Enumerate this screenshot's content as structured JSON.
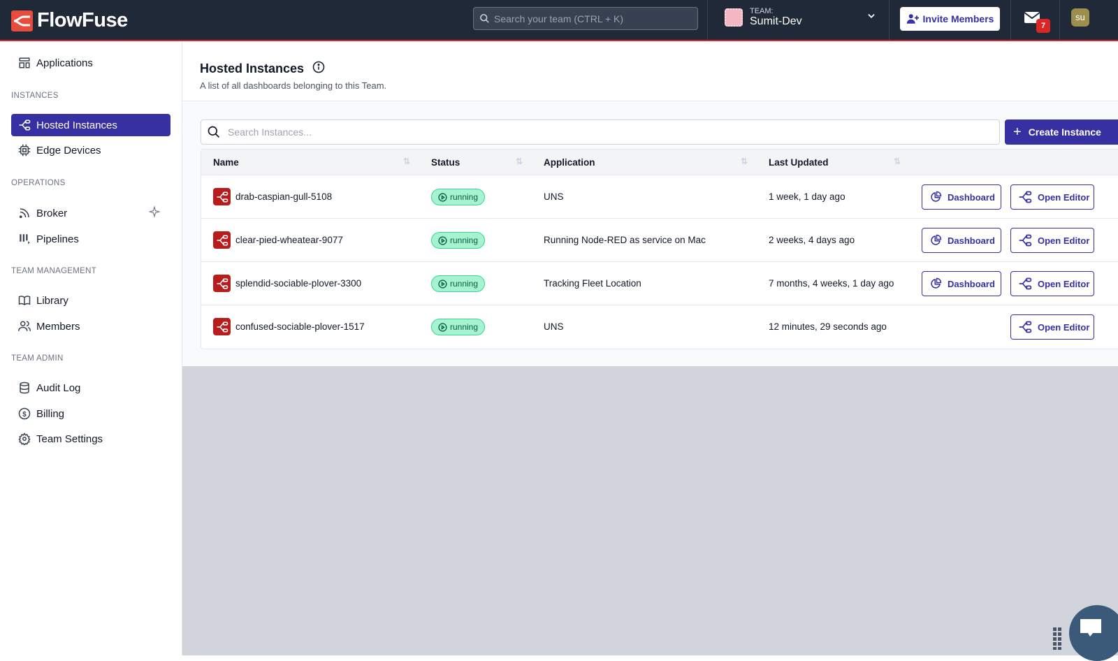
{
  "header": {
    "brand": "FlowFuse",
    "search_placeholder": "Search your team (CTRL + K)",
    "team_label": "TEAM:",
    "team_name": "Sumit-Dev",
    "invite_label": "Invite Members",
    "notification_count": "7",
    "user_initials": "su"
  },
  "sidebar": {
    "applications": "Applications",
    "sections": {
      "instances": "INSTANCES",
      "operations": "OPERATIONS",
      "team_management": "TEAM MANAGEMENT",
      "team_admin": "TEAM ADMIN"
    },
    "items": {
      "hosted": "Hosted Instances",
      "edge": "Edge Devices",
      "broker": "Broker",
      "pipelines": "Pipelines",
      "library": "Library",
      "members": "Members",
      "audit": "Audit Log",
      "billing": "Billing",
      "settings": "Team Settings"
    }
  },
  "page": {
    "title": "Hosted Instances",
    "subtitle": "A list of all dashboards belonging to this Team.",
    "search_placeholder": "Search Instances...",
    "create_label": "Create Instance"
  },
  "table": {
    "columns": [
      "Name",
      "Status",
      "Application",
      "Last Updated"
    ],
    "dashboard_label": "Dashboard",
    "editor_label": "Open Editor",
    "rows": [
      {
        "name": "drab-caspian-gull-5108",
        "status": "running",
        "application": "UNS",
        "updated": "1 week, 1 day ago"
      },
      {
        "name": "clear-pied-wheatear-9077",
        "status": "running",
        "application": "Running Node-RED as service on Mac",
        "updated": "2 weeks, 4 days ago"
      },
      {
        "name": "splendid-sociable-plover-3300",
        "status": "running",
        "application": "Tracking Fleet Location",
        "updated": "7 months, 4 weeks, 1 day ago"
      },
      {
        "name": "confused-sociable-plover-1517",
        "status": "running",
        "application": "UNS",
        "updated": "12 minutes, 29 seconds ago"
      }
    ]
  },
  "colors": {
    "accent": "#3730a3",
    "header_bg": "#1f2937",
    "brand_red": "#dc2626",
    "status_running": "#a7f3d0"
  }
}
